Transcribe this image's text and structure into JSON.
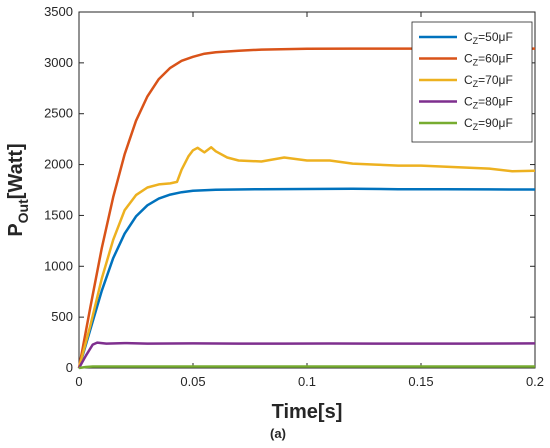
{
  "chart_data": {
    "type": "line",
    "xlabel": "Time[s]",
    "ylabel_main": "P",
    "ylabel_sub": "Out",
    "ylabel_tail": "[Watt]",
    "xlim": [
      0,
      0.2
    ],
    "ylim": [
      0,
      3500
    ],
    "x_ticks": [
      {
        "value": 0,
        "label": "0"
      },
      {
        "value": 0.05,
        "label": "0.05"
      },
      {
        "value": 0.1,
        "label": "0.1"
      },
      {
        "value": 0.15,
        "label": "0.15"
      },
      {
        "value": 0.2,
        "label": "0.2"
      }
    ],
    "y_ticks": [
      {
        "value": 0,
        "label": "0"
      },
      {
        "value": 500,
        "label": "500"
      },
      {
        "value": 1000,
        "label": "1000"
      },
      {
        "value": 1500,
        "label": "1500"
      },
      {
        "value": 2000,
        "label": "2000"
      },
      {
        "value": 2500,
        "label": "2500"
      },
      {
        "value": 3000,
        "label": "3000"
      },
      {
        "value": 3500,
        "label": "3500"
      }
    ],
    "grid": false,
    "legend_position": "top-right",
    "caption": "(a)",
    "series": [
      {
        "label_main": "C",
        "label_sub": "Z",
        "label_tail": "=50μF",
        "color": "#0072BD",
        "points": [
          [
            0,
            0
          ],
          [
            0.005,
            380
          ],
          [
            0.01,
            760
          ],
          [
            0.015,
            1080
          ],
          [
            0.02,
            1320
          ],
          [
            0.025,
            1490
          ],
          [
            0.03,
            1600
          ],
          [
            0.035,
            1665
          ],
          [
            0.04,
            1705
          ],
          [
            0.045,
            1728
          ],
          [
            0.05,
            1742
          ],
          [
            0.06,
            1752
          ],
          [
            0.08,
            1758
          ],
          [
            0.1,
            1760
          ],
          [
            0.12,
            1762
          ],
          [
            0.14,
            1758
          ],
          [
            0.16,
            1757
          ],
          [
            0.18,
            1756
          ],
          [
            0.2,
            1755
          ]
        ]
      },
      {
        "label_main": "C",
        "label_sub": "Z",
        "label_tail": "=60μF",
        "color": "#D95319",
        "points": [
          [
            0,
            0
          ],
          [
            0.005,
            600
          ],
          [
            0.01,
            1180
          ],
          [
            0.015,
            1680
          ],
          [
            0.02,
            2100
          ],
          [
            0.025,
            2430
          ],
          [
            0.03,
            2670
          ],
          [
            0.035,
            2840
          ],
          [
            0.04,
            2950
          ],
          [
            0.045,
            3020
          ],
          [
            0.05,
            3060
          ],
          [
            0.055,
            3090
          ],
          [
            0.06,
            3105
          ],
          [
            0.07,
            3120
          ],
          [
            0.08,
            3130
          ],
          [
            0.1,
            3138
          ],
          [
            0.12,
            3140
          ],
          [
            0.14,
            3140
          ],
          [
            0.16,
            3140
          ],
          [
            0.18,
            3140
          ],
          [
            0.2,
            3140
          ]
        ]
      },
      {
        "label_main": "C",
        "label_sub": "Z",
        "label_tail": "=70μF",
        "color": "#EDB120",
        "points": [
          [
            0,
            0
          ],
          [
            0.005,
            420
          ],
          [
            0.01,
            880
          ],
          [
            0.015,
            1260
          ],
          [
            0.02,
            1550
          ],
          [
            0.025,
            1700
          ],
          [
            0.03,
            1775
          ],
          [
            0.035,
            1805
          ],
          [
            0.04,
            1815
          ],
          [
            0.043,
            1830
          ],
          [
            0.045,
            1950
          ],
          [
            0.048,
            2080
          ],
          [
            0.05,
            2140
          ],
          [
            0.052,
            2165
          ],
          [
            0.055,
            2120
          ],
          [
            0.058,
            2170
          ],
          [
            0.06,
            2130
          ],
          [
            0.065,
            2070
          ],
          [
            0.07,
            2040
          ],
          [
            0.08,
            2030
          ],
          [
            0.09,
            2070
          ],
          [
            0.1,
            2040
          ],
          [
            0.11,
            2040
          ],
          [
            0.12,
            2010
          ],
          [
            0.13,
            2000
          ],
          [
            0.14,
            1990
          ],
          [
            0.15,
            1990
          ],
          [
            0.16,
            1980
          ],
          [
            0.17,
            1970
          ],
          [
            0.18,
            1960
          ],
          [
            0.19,
            1935
          ],
          [
            0.2,
            1940
          ]
        ]
      },
      {
        "label_main": "C",
        "label_sub": "Z",
        "label_tail": "=80μF",
        "color": "#7E2F8E",
        "points": [
          [
            0,
            0
          ],
          [
            0.003,
            120
          ],
          [
            0.006,
            230
          ],
          [
            0.008,
            250
          ],
          [
            0.012,
            240
          ],
          [
            0.02,
            245
          ],
          [
            0.03,
            240
          ],
          [
            0.05,
            242
          ],
          [
            0.07,
            240
          ],
          [
            0.09,
            240
          ],
          [
            0.11,
            241
          ],
          [
            0.13,
            240
          ],
          [
            0.15,
            240
          ],
          [
            0.17,
            240
          ],
          [
            0.2,
            242
          ]
        ]
      },
      {
        "label_main": "C",
        "label_sub": "Z",
        "label_tail": "=90μF",
        "color": "#77AC30",
        "points": [
          [
            0,
            0
          ],
          [
            0.003,
            10
          ],
          [
            0.006,
            15
          ],
          [
            0.05,
            15
          ],
          [
            0.1,
            15
          ],
          [
            0.15,
            15
          ],
          [
            0.2,
            15
          ]
        ]
      }
    ]
  }
}
